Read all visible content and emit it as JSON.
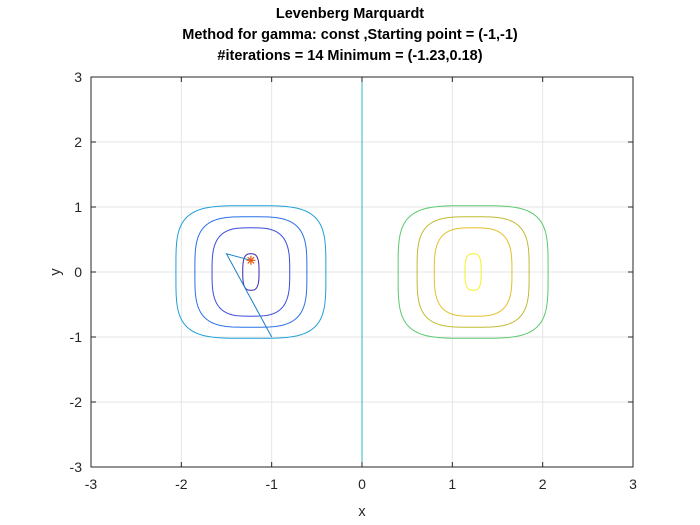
{
  "chart_data": {
    "type": "line",
    "title": [
      "Levenberg Marquardt",
      "Method for gamma: const ,Starting point = (-1,-1)",
      "#iterations = 14 Minimum = (-1.23,0.18)"
    ],
    "xlabel": "x",
    "ylabel": "y",
    "xlim": [
      -3,
      3
    ],
    "ylim": [
      -3,
      3
    ],
    "xticks": [
      -3,
      -2,
      -1,
      0,
      1,
      2,
      3
    ],
    "yticks": [
      -3,
      -2,
      -1,
      0,
      1,
      2,
      3
    ],
    "xtick_labels": [
      "-3",
      "-2",
      "-1",
      "0",
      "1",
      "2",
      "3"
    ],
    "ytick_labels": [
      "-3",
      "-2",
      "-1",
      "0",
      "1",
      "2",
      "3"
    ],
    "grid": true,
    "vertical_line": {
      "x": 0,
      "color": "#2bb8b8"
    },
    "contours": [
      {
        "cx": -1.23,
        "cy": 0,
        "rx": 0.09,
        "ry": 0.28,
        "n": 3.0,
        "color": "#3d26a8"
      },
      {
        "cx": -1.23,
        "cy": 0,
        "rx": 0.43,
        "ry": 0.68,
        "n": 3.2,
        "color": "#3a4cd8"
      },
      {
        "cx": -1.23,
        "cy": 0,
        "rx": 0.62,
        "ry": 0.85,
        "n": 3.6,
        "color": "#2870e6"
      },
      {
        "cx": -1.23,
        "cy": 0,
        "rx": 0.83,
        "ry": 1.02,
        "n": 4.0,
        "color": "#1fa0d8"
      },
      {
        "cx": 1.23,
        "cy": 0,
        "rx": 0.09,
        "ry": 0.28,
        "n": 3.0,
        "color": "#f2f026"
      },
      {
        "cx": 1.23,
        "cy": 0,
        "rx": 0.43,
        "ry": 0.68,
        "n": 3.2,
        "color": "#e2c02a"
      },
      {
        "cx": 1.23,
        "cy": 0,
        "rx": 0.62,
        "ry": 0.85,
        "n": 3.6,
        "color": "#bfbb30"
      },
      {
        "cx": 1.23,
        "cy": 0,
        "rx": 0.83,
        "ry": 1.02,
        "n": 4.0,
        "color": "#5cc86e"
      }
    ],
    "path": {
      "color": "#1a80c8",
      "x": [
        -1.0,
        -1.5,
        -1.23,
        -1.23
      ],
      "y": [
        -1.0,
        0.28,
        0.18,
        0.18
      ]
    },
    "minimum_marker": {
      "x": -1.23,
      "y": 0.18,
      "color": "#e05a14",
      "symbol": "asterisk"
    }
  }
}
